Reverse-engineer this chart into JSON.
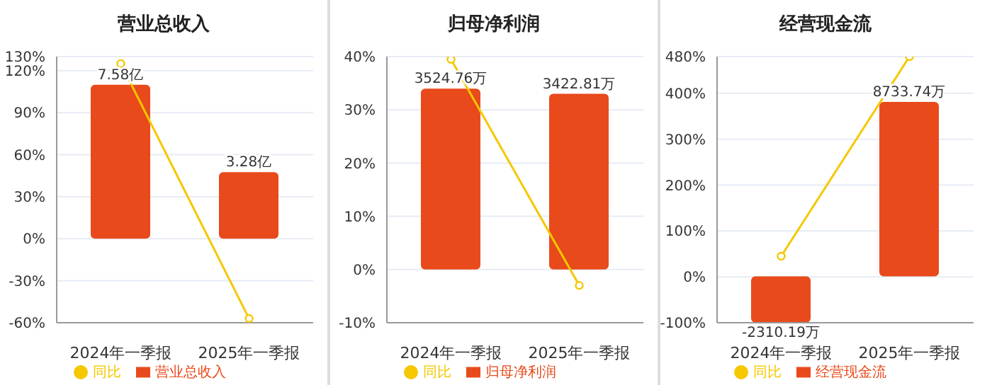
{
  "chart_data": [
    {
      "type": "bar",
      "title": "营业总收入",
      "categories": [
        "2024年一季报",
        "2025年一季报"
      ],
      "series": [
        {
          "name": "营业总收入",
          "axis": "y2",
          "color": "#e84a1b",
          "values": [
            7.58,
            3.28
          ],
          "value_labels": [
            "7.58亿",
            "3.28亿"
          ]
        },
        {
          "name": "同比",
          "type": "line",
          "color": "#f5c800",
          "values": [
            125,
            -57
          ]
        }
      ],
      "ylim": [
        -60,
        130
      ],
      "yticks": [
        {
          "value": -60,
          "label": "-60%"
        },
        {
          "value": -30,
          "label": "-30%"
        },
        {
          "value": 0,
          "label": "0%"
        },
        {
          "value": 30,
          "label": "30%"
        },
        {
          "value": 60,
          "label": "60%"
        },
        {
          "value": 90,
          "label": "90%"
        },
        {
          "value": 120,
          "label": "120%"
        },
        {
          "value": 130,
          "label": "130%"
        }
      ],
      "y2lim": [
        -4.13,
        8.96
      ],
      "grid": "y",
      "legend": "bottom",
      "marker": "circle"
    },
    {
      "type": "bar",
      "title": "归母净利润",
      "categories": [
        "2024年一季报",
        "2025年一季报"
      ],
      "series": [
        {
          "name": "归母净利润",
          "axis": "y2",
          "color": "#e84a1b",
          "values": [
            3524.76,
            3422.81
          ],
          "value_labels": [
            "3524.76万",
            "3422.81万"
          ]
        },
        {
          "name": "同比",
          "type": "line",
          "color": "#f5c800",
          "values": [
            39.5,
            -3
          ]
        }
      ],
      "ylim": [
        -10,
        40
      ],
      "yticks": [
        {
          "value": -10,
          "label": "-10%"
        },
        {
          "value": 0,
          "label": "0%"
        },
        {
          "value": 10,
          "label": "10%"
        },
        {
          "value": 20,
          "label": "20%"
        },
        {
          "value": 30,
          "label": "30%"
        },
        {
          "value": 40,
          "label": "40%"
        }
      ],
      "y2lim": [
        -1037,
        4147
      ],
      "grid": "y",
      "legend": "bottom",
      "marker": "circle"
    },
    {
      "type": "bar",
      "title": "经营现金流",
      "categories": [
        "2024年一季报",
        "2025年一季报"
      ],
      "series": [
        {
          "name": "经营现金流",
          "axis": "y2",
          "color": "#e84a1b",
          "values": [
            -2310.19,
            8733.74
          ],
          "value_labels": [
            "-2310.19万",
            "8733.74万"
          ]
        },
        {
          "name": "同比",
          "type": "line",
          "color": "#f5c800",
          "values": [
            45,
            480
          ]
        }
      ],
      "ylim": [
        -100,
        480
      ],
      "yticks": [
        {
          "value": -100,
          "label": "-100%"
        },
        {
          "value": 0,
          "label": "0%"
        },
        {
          "value": 100,
          "label": "100%"
        },
        {
          "value": 200,
          "label": "200%"
        },
        {
          "value": 300,
          "label": "300%"
        },
        {
          "value": 400,
          "label": "400%"
        },
        {
          "value": 480,
          "label": "480%"
        }
      ],
      "y2lim": [
        -2320,
        11000
      ],
      "grid": "y",
      "legend": "bottom",
      "marker": "circle"
    }
  ]
}
